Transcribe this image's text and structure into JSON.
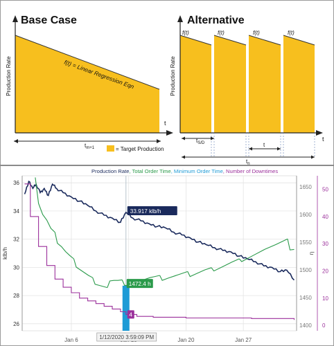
{
  "diagrams": {
    "base_case": {
      "title": "Base Case",
      "ylabel": "Production Rate",
      "xlabel": "t",
      "fit_label": "f(t) = Linear Regression Eqn",
      "span_label_main": "t",
      "span_label_sub": "m+1",
      "legend_label": "= Target Production"
    },
    "alternative": {
      "title": "Alternative",
      "ylabel": "Production Rate",
      "xlabel": "t",
      "segment_labels": [
        "f(t)",
        "f(t)",
        "f(t)",
        "f(t)"
      ],
      "shutdown_label_main": "t",
      "shutdown_label_sub": "S/D",
      "cycle_label": "t",
      "total_label_main": "t",
      "total_label_sub": "n"
    },
    "colors": {
      "fill": "#f7bf1e",
      "axis": "#222222"
    }
  },
  "chart_data": {
    "type": "line",
    "title": "",
    "legend": [
      {
        "name": "Production Rate",
        "color": "#1a2a5c"
      },
      {
        "name": "Total Order Time",
        "color": "#2a9a4a"
      },
      {
        "name": "Minimum Order Time",
        "color": "#1e9bd6"
      },
      {
        "name": "Number of Downtimes",
        "color": "#9b2f9b"
      }
    ],
    "x_ticks": [
      "Jan 6",
      "Jan 13",
      "Jan 20",
      "Jan 27"
    ],
    "x_tick_days": [
      6,
      13,
      20,
      27
    ],
    "xlim_days": [
      0,
      33.5
    ],
    "y_left": {
      "label": "klb/h",
      "ticks": [
        26,
        28,
        30,
        32,
        34,
        36
      ],
      "ylim": [
        25.5,
        36.5
      ]
    },
    "y_right_inner": {
      "ticks": [
        1400,
        1450,
        1500,
        1550,
        1600,
        1650
      ],
      "ylim": [
        1390,
        1670
      ]
    },
    "y_right_outer": {
      "label": "η",
      "ticks": [
        0,
        10,
        20,
        30,
        40,
        50
      ],
      "ylim": [
        -2,
        55
      ]
    },
    "tooltips": {
      "production": "33.917 klb/h",
      "total_order": "1472.4 h",
      "downtimes": "4",
      "date": "1/12/2020 3:59:09 PM"
    },
    "cursor_day": 12.67,
    "min_order_bar": {
      "day": 12.67,
      "value": 28.7
    },
    "series": [
      {
        "name": "Production Rate",
        "axis": "left",
        "color": "#1a2a5c",
        "points": [
          [
            0.3,
            35.2
          ],
          [
            0.8,
            36.1
          ],
          [
            1.3,
            35.6
          ],
          [
            1.7,
            35.9
          ],
          [
            2.2,
            35.3
          ],
          [
            2.7,
            35.6
          ],
          [
            3.2,
            35.1
          ],
          [
            3.7,
            35.9
          ],
          [
            4.2,
            35.6
          ],
          [
            5,
            35.3
          ],
          [
            6,
            35.0
          ],
          [
            7,
            34.7
          ],
          [
            8,
            34.4
          ],
          [
            9,
            34.0
          ],
          [
            10,
            33.7
          ],
          [
            11,
            33.5
          ],
          [
            12,
            33.2
          ],
          [
            12.67,
            33.9
          ],
          [
            13.5,
            33.5
          ],
          [
            14.5,
            33.3
          ],
          [
            15.5,
            33.1
          ],
          [
            16.5,
            32.9
          ],
          [
            17.5,
            32.8
          ],
          [
            18.5,
            32.5
          ],
          [
            19.5,
            32.3
          ],
          [
            20.5,
            32.1
          ],
          [
            21.5,
            31.8
          ],
          [
            22.5,
            31.6
          ],
          [
            23.5,
            31.4
          ],
          [
            24.5,
            31.2
          ],
          [
            25.5,
            31.1
          ],
          [
            26.5,
            30.8
          ],
          [
            27.5,
            30.6
          ],
          [
            28.5,
            30.4
          ],
          [
            29.5,
            30.1
          ],
          [
            30.5,
            30.0
          ],
          [
            31.5,
            29.7
          ],
          [
            32.3,
            29.8
          ],
          [
            33.2,
            29.1
          ]
        ]
      },
      {
        "name": "Total Order Time",
        "axis": "right_inner",
        "color": "#2a9a4a",
        "segments": [
          [
            [
              1.6,
              1667
            ],
            [
              2.0,
              1620
            ],
            [
              2.5,
              1600
            ],
            [
              3.0,
              1590
            ],
            [
              3.5,
              1575
            ],
            [
              4.0,
              1568
            ]
          ],
          [
            [
              4.0,
              1568
            ],
            [
              4.3,
              1548
            ],
            [
              4.8,
              1542
            ],
            [
              5.3,
              1533
            ],
            [
              5.8,
              1526
            ],
            [
              6.3,
              1520
            ]
          ],
          [
            [
              6.3,
              1520
            ],
            [
              6.6,
              1505
            ],
            [
              7.1,
              1500
            ],
            [
              7.6,
              1495
            ],
            [
              8.1,
              1490
            ],
            [
              8.6,
              1486
            ]
          ],
          [
            [
              8.6,
              1486
            ],
            [
              8.9,
              1474
            ],
            [
              9.4,
              1472
            ],
            [
              9.9,
              1470
            ],
            [
              10.4,
              1468
            ]
          ],
          [
            [
              10.4,
              1468
            ],
            [
              10.7,
              1480
            ],
            [
              11.2,
              1481
            ],
            [
              11.7,
              1481
            ],
            [
              12.2,
              1482
            ]
          ],
          [
            [
              12.2,
              1482
            ],
            [
              12.5,
              1472
            ],
            [
              13.0,
              1472
            ],
            [
              13.5,
              1473
            ],
            [
              14.0,
              1474
            ],
            [
              14.7,
              1475
            ]
          ],
          [
            [
              14.7,
              1475
            ],
            [
              15.0,
              1483
            ],
            [
              15.6,
              1486
            ],
            [
              16.2,
              1488
            ],
            [
              16.8,
              1490
            ]
          ],
          [
            [
              16.8,
              1490
            ],
            [
              17.1,
              1481
            ],
            [
              17.8,
              1485
            ],
            [
              18.6,
              1489
            ],
            [
              19.4,
              1493
            ],
            [
              20.2,
              1497
            ]
          ],
          [
            [
              20.2,
              1497
            ],
            [
              20.5,
              1488
            ],
            [
              21.4,
              1494
            ],
            [
              22.3,
              1500
            ],
            [
              23.1,
              1504
            ]
          ],
          [
            [
              23.1,
              1504
            ],
            [
              23.4,
              1498
            ],
            [
              24.5,
              1506
            ],
            [
              25.6,
              1514
            ],
            [
              26.5,
              1520
            ]
          ],
          [
            [
              26.5,
              1520
            ],
            [
              26.8,
              1515
            ],
            [
              28.2,
              1526
            ],
            [
              29.6,
              1537
            ],
            [
              31.0,
              1546
            ],
            [
              32.4,
              1556
            ]
          ],
          [
            [
              32.4,
              1556
            ],
            [
              32.7,
              1536
            ],
            [
              33.2,
              1537
            ]
          ]
        ]
      },
      {
        "name": "Number of Downtimes",
        "axis": "right_outer",
        "color": "#9b2f9b",
        "points": [
          [
            0.3,
            52
          ],
          [
            1,
            40
          ],
          [
            2,
            29
          ],
          [
            3,
            22
          ],
          [
            4,
            17
          ],
          [
            5,
            14
          ],
          [
            6,
            12
          ],
          [
            7,
            10
          ],
          [
            8,
            9
          ],
          [
            9,
            8
          ],
          [
            10,
            7
          ],
          [
            11,
            6
          ],
          [
            12,
            5
          ],
          [
            12.67,
            4
          ],
          [
            14,
            3.3
          ],
          [
            16,
            3
          ],
          [
            18,
            3
          ],
          [
            20,
            2.7
          ],
          [
            22,
            2.7
          ],
          [
            24,
            2.7
          ],
          [
            26,
            2.7
          ],
          [
            28,
            2.5
          ],
          [
            30,
            2.5
          ],
          [
            32,
            2.5
          ],
          [
            33.2,
            2.0
          ]
        ]
      }
    ]
  }
}
